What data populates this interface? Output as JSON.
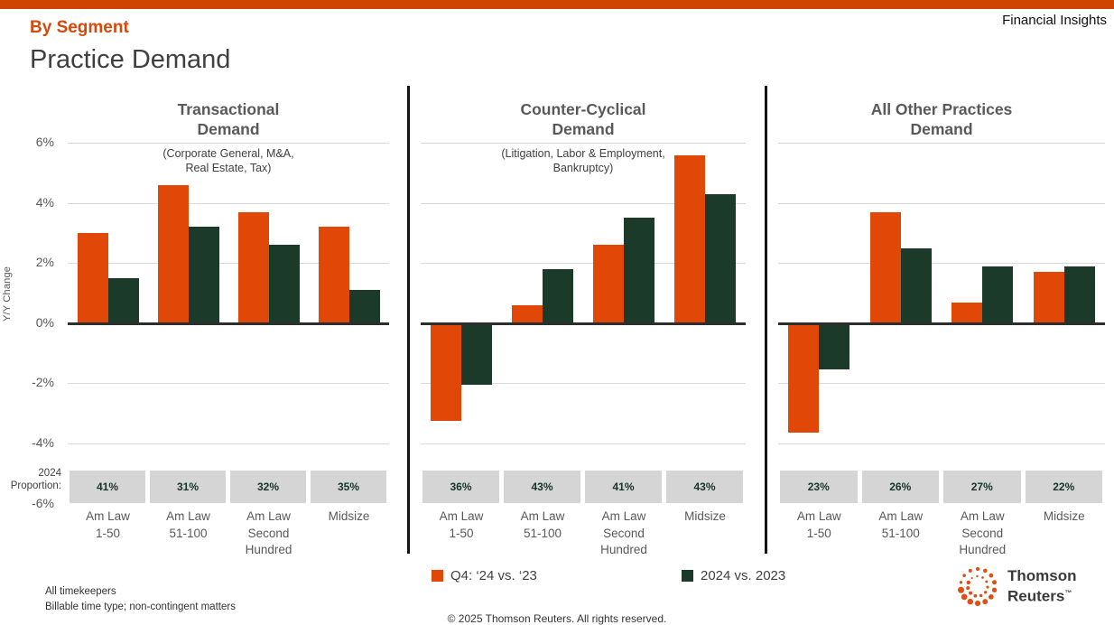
{
  "header": {
    "kicker": "By Segment",
    "title": "Practice Demand",
    "corner_label": "Financial Insights"
  },
  "colors": {
    "orange": "#E14808",
    "dark_green": "#1B3A2A",
    "top_bar": "#CF4500",
    "kicker": "#D6490B",
    "proportion_text": "#17352A",
    "logo_orange": "#E04E14"
  },
  "y_axis": {
    "label": "Y/Y Change",
    "ticks": [
      "6%",
      "4%",
      "2%",
      "0%",
      "-2%",
      "-4%",
      "-6%"
    ],
    "tick_values": [
      6,
      4,
      2,
      0,
      -2,
      -4,
      -6
    ]
  },
  "proportion_caption": [
    "2024",
    "Proportion:"
  ],
  "legend": {
    "items": [
      {
        "label": "Q4: ‘24 vs. ‘23",
        "color_key": "orange"
      },
      {
        "label": "2024 vs. 2023",
        "color_key": "dark_green"
      }
    ]
  },
  "footnotes": [
    "All timekeepers",
    "Billable time type; non-contingent matters"
  ],
  "copyright": "© 2025 Thomson Reuters. All rights reserved.",
  "logo": {
    "name": "Thomson Reuters",
    "line1": "Thomson",
    "line2": "Reuters",
    "trademark": "™"
  },
  "chart_data": [
    {
      "type": "bar",
      "title": "Transactional Demand",
      "title_lines": [
        "Transactional",
        "Demand"
      ],
      "subtitle_lines": [
        "(Corporate General, M&A,",
        "Real Estate, Tax)"
      ],
      "categories": [
        [
          "Am Law",
          "1-50"
        ],
        [
          "Am Law",
          "51-100"
        ],
        [
          "Am Law",
          "Second",
          "Hundred"
        ],
        [
          "Midsize"
        ]
      ],
      "series": [
        {
          "name": "Q4: ‘24 vs. ‘23",
          "color_key": "orange",
          "values": [
            3.0,
            4.6,
            3.7,
            3.2
          ]
        },
        {
          "name": "2024 vs. 2023",
          "color_key": "dark_green",
          "values": [
            1.5,
            3.2,
            2.6,
            1.1
          ]
        }
      ],
      "proportions": [
        "41%",
        "31%",
        "32%",
        "35%"
      ],
      "proportions_label": "2024 Proportion:",
      "ylabel": "Y/Y Change",
      "ylim": [
        -6,
        6
      ],
      "grid": true,
      "legend_position": "bottom"
    },
    {
      "type": "bar",
      "title": "Counter-Cyclical Demand",
      "title_lines": [
        "Counter-Cyclical",
        "Demand"
      ],
      "subtitle_lines": [
        "(Litigation, Labor & Employment,",
        "Bankruptcy)"
      ],
      "categories": [
        [
          "Am Law",
          "1-50"
        ],
        [
          "Am Law",
          "51-100"
        ],
        [
          "Am Law",
          "Second",
          "Hundred"
        ],
        [
          "Midsize"
        ]
      ],
      "series": [
        {
          "name": "Q4: ‘24 vs. ‘23",
          "color_key": "orange",
          "values": [
            -3.2,
            0.6,
            2.6,
            5.6
          ]
        },
        {
          "name": "2024 vs. 2023",
          "color_key": "dark_green",
          "values": [
            -2.0,
            1.8,
            3.5,
            4.3
          ]
        }
      ],
      "proportions": [
        "36%",
        "43%",
        "41%",
        "43%"
      ],
      "proportions_label": "2024 Proportion:",
      "ylabel": "Y/Y Change",
      "ylim": [
        -6,
        6
      ],
      "grid": true,
      "legend_position": "bottom"
    },
    {
      "type": "bar",
      "title": "All Other Practices Demand",
      "title_lines": [
        "All Other Practices",
        "Demand"
      ],
      "subtitle_lines": [],
      "categories": [
        [
          "Am Law",
          "1-50"
        ],
        [
          "Am Law",
          "51-100"
        ],
        [
          "Am Law",
          "Second",
          "Hundred"
        ],
        [
          "Midsize"
        ]
      ],
      "series": [
        {
          "name": "Q4: ‘24 vs. ‘23",
          "color_key": "orange",
          "values": [
            -3.6,
            3.7,
            0.7,
            1.7
          ]
        },
        {
          "name": "2024 vs. 2023",
          "color_key": "dark_green",
          "values": [
            -1.5,
            2.5,
            1.9,
            1.9
          ]
        }
      ],
      "proportions": [
        "23%",
        "26%",
        "27%",
        "22%"
      ],
      "proportions_label": "2024 Proportion:",
      "ylabel": "Y/Y Change",
      "ylim": [
        -6,
        6
      ],
      "grid": true,
      "legend_position": "bottom"
    }
  ]
}
